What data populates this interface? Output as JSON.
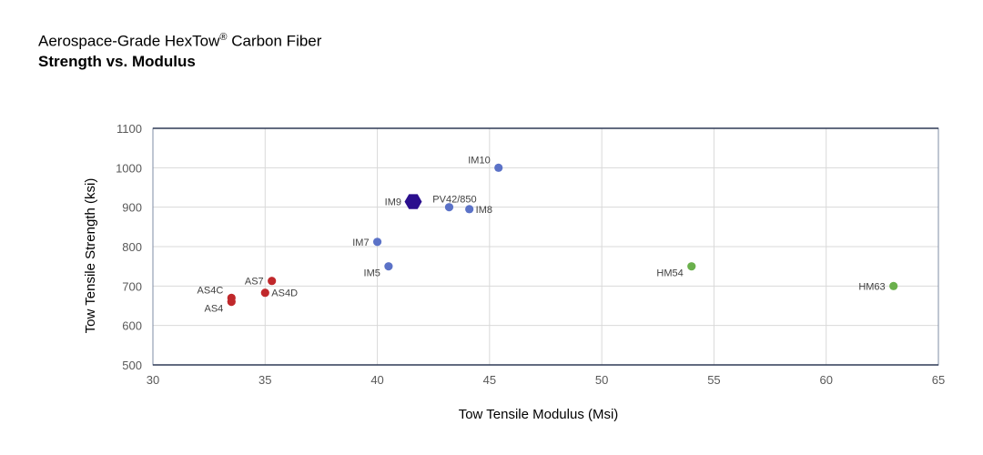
{
  "header": {
    "title_text": "Aerospace-Grade HexTow",
    "title_mark": "®",
    "title_suffix": " Carbon Fiber",
    "subtitle": "Strength vs. Modulus"
  },
  "chart_data": {
    "type": "scatter",
    "title": "Aerospace-Grade HexTow® Carbon Fiber",
    "subtitle": "Strength vs. Modulus",
    "xlabel": "Tow Tensile Modulus (Msi)",
    "ylabel": "Tow Tensile Strength (ksi)",
    "xlim": [
      30,
      65
    ],
    "ylim": [
      500,
      1100
    ],
    "xticks": [
      30,
      35,
      40,
      45,
      50,
      55,
      60,
      65
    ],
    "yticks": [
      500,
      600,
      700,
      800,
      900,
      1000,
      1100
    ],
    "grid": true,
    "colors": {
      "standard": "#c0282b",
      "intermediate": "#5b72c7",
      "high": "#6ab04c",
      "highlight": "#2b0f8e"
    },
    "points": [
      {
        "label": "AS4",
        "x": 33.5,
        "y": 660,
        "group": "standard",
        "label_side": "left-below"
      },
      {
        "label": "AS4C",
        "x": 33.5,
        "y": 670,
        "group": "standard",
        "label_side": "left-above"
      },
      {
        "label": "AS4D",
        "x": 35.0,
        "y": 683,
        "group": "standard",
        "label_side": "right"
      },
      {
        "label": "AS7",
        "x": 35.3,
        "y": 713,
        "group": "standard",
        "label_side": "left"
      },
      {
        "label": "IM7",
        "x": 40.0,
        "y": 812,
        "group": "intermediate",
        "label_side": "left"
      },
      {
        "label": "IM5",
        "x": 40.5,
        "y": 750,
        "group": "intermediate",
        "label_side": "left-below"
      },
      {
        "label": "IM9",
        "x": 41.6,
        "y": 914,
        "group": "highlight",
        "label_side": "left"
      },
      {
        "label": "PV42/850",
        "x": 43.2,
        "y": 900,
        "group": "intermediate",
        "label_side": "above"
      },
      {
        "label": "IM8",
        "x": 44.1,
        "y": 895,
        "group": "intermediate",
        "label_side": "right"
      },
      {
        "label": "IM10",
        "x": 45.4,
        "y": 1000,
        "group": "intermediate",
        "label_side": "left-above"
      },
      {
        "label": "HM54",
        "x": 54.0,
        "y": 750,
        "group": "high",
        "label_side": "left-below"
      },
      {
        "label": "HM63",
        "x": 63.0,
        "y": 700,
        "group": "high",
        "label_side": "left"
      }
    ]
  }
}
